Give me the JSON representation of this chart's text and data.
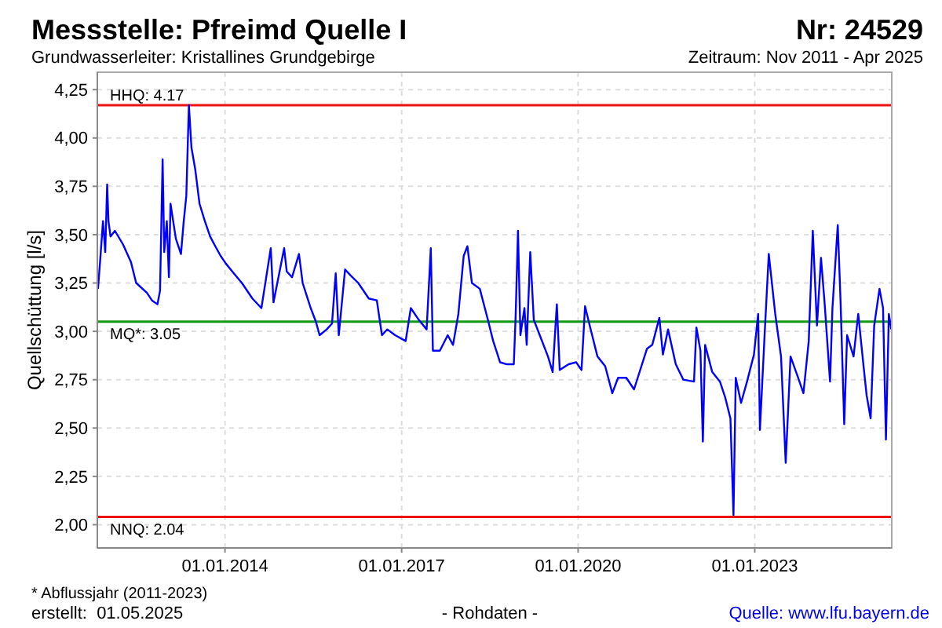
{
  "chart_data": {
    "type": "line",
    "title": "Messstelle: Pfreimd Quelle I",
    "subtitle": "Grundwasserleiter: Kristallines Grundgebirge",
    "ylabel": "Quellschüttung [l/s]",
    "annotations": [
      "Nr: 24529",
      "Zeitraum: Nov 2011 - Apr 2025",
      "* Abflussjahr (2011-2023)",
      "erstellt:  01.05.2025",
      "- Rohdaten -",
      "Quelle: www.lfu.bayern.de"
    ],
    "xlim": [
      "2011-11-01",
      "2025-04-30"
    ],
    "xticks": [
      {
        "value": "2014-01-01",
        "label": "01.01.2014"
      },
      {
        "value": "2017-01-01",
        "label": "01.01.2017"
      },
      {
        "value": "2020-01-01",
        "label": "01.01.2020"
      },
      {
        "value": "2023-01-01",
        "label": "01.01.2023"
      }
    ],
    "ylim": [
      1.88,
      4.34
    ],
    "yticks": [
      {
        "value": 2,
        "label": "2,00"
      },
      {
        "value": 2.25,
        "label": "2,25"
      },
      {
        "value": 2.5,
        "label": "2,50"
      },
      {
        "value": 2.75,
        "label": "2,75"
      },
      {
        "value": 3,
        "label": "3,00"
      },
      {
        "value": 3.25,
        "label": "3,25"
      },
      {
        "value": 3.5,
        "label": "3,50"
      },
      {
        "value": 3.75,
        "label": "3,75"
      },
      {
        "value": 4,
        "label": "4,00"
      },
      {
        "value": 4.25,
        "label": "4,25"
      }
    ],
    "grid": true,
    "line_style": "solid",
    "marker": "none",
    "ref_lines": [
      {
        "axis": "y",
        "value": 4.17,
        "label": "HHQ: 4.17",
        "color": "#ee1111"
      },
      {
        "axis": "y",
        "value": 3.05,
        "label": "MQ*: 3.05",
        "color": "#119911"
      },
      {
        "axis": "y",
        "value": 2.04,
        "label": "NNQ: 2.04",
        "color": "#ee1111"
      }
    ],
    "series": [
      {
        "color": "#0000ff",
        "x": [
          "2011-11-05",
          "2011-11-18",
          "2011-12-06",
          "2011-12-20",
          "2012-01-01",
          "2012-01-09",
          "2012-01-22",
          "2012-02-18",
          "2012-04-08",
          "2012-05-27",
          "2012-06-29",
          "2012-09-03",
          "2012-10-05",
          "2012-11-08",
          "2012-11-24",
          "2012-12-10",
          "2012-12-20",
          "2013-01-05",
          "2013-01-18",
          "2013-01-28",
          "2013-03-02",
          "2013-04-03",
          "2013-04-19",
          "2013-05-06",
          "2013-05-22",
          "2013-06-07",
          "2013-06-30",
          "2013-07-27",
          "2013-08-29",
          "2013-10-01",
          "2013-11-02",
          "2013-12-05",
          "2014-01-07",
          "2014-02-25",
          "2014-04-16",
          "2014-06-20",
          "2014-08-15",
          "2014-10-12",
          "2014-10-29",
          "2015-01-03",
          "2015-01-19",
          "2015-02-21",
          "2015-04-05",
          "2015-04-28",
          "2015-06-17",
          "2015-07-19",
          "2015-08-11",
          "2015-09-24",
          "2015-10-27",
          "2015-11-19",
          "2015-12-08",
          "2016-01-16",
          "2016-02-18",
          "2016-04-07",
          "2016-06-11",
          "2016-07-31",
          "2016-09-01",
          "2016-10-04",
          "2016-11-22",
          "2017-01-26",
          "2017-02-27",
          "2017-04-17",
          "2017-06-05",
          "2017-07-01",
          "2017-07-14",
          "2017-08-26",
          "2017-10-14",
          "2017-11-16",
          "2017-12-19",
          "2018-01-21",
          "2018-02-13",
          "2018-03-13",
          "2018-05-01",
          "2018-06-20",
          "2018-07-23",
          "2018-09-04",
          "2018-10-12",
          "2018-11-28",
          "2018-12-09",
          "2018-12-24",
          "2019-01-08",
          "2019-02-02",
          "2019-02-16",
          "2019-03-10",
          "2019-04-01",
          "2019-05-08",
          "2019-06-28",
          "2019-07-27",
          "2019-08-22",
          "2019-09-09",
          "2019-11-03",
          "2019-12-20",
          "2020-01-22",
          "2020-02-13",
          "2020-03-13",
          "2020-04-30",
          "2020-06-17",
          "2020-07-31",
          "2020-09-05",
          "2020-10-26",
          "2020-12-13",
          "2021-03-03",
          "2021-04-05",
          "2021-05-19",
          "2021-06-10",
          "2021-07-12",
          "2021-08-29",
          "2021-10-15",
          "2021-12-20",
          "2022-01-04",
          "2022-01-29",
          "2022-02-13",
          "2022-02-27",
          "2022-04-12",
          "2022-05-30",
          "2022-07-01",
          "2022-08-03",
          "2022-08-22",
          "2022-09-05",
          "2022-10-08",
          "2022-11-14",
          "2022-12-27",
          "2023-01-22",
          "2023-02-02",
          "2023-03-03",
          "2023-03-29",
          "2023-05-08",
          "2023-06-13",
          "2023-07-12",
          "2023-08-11",
          "2023-09-27",
          "2023-10-30",
          "2023-12-02",
          "2023-12-27",
          "2024-01-22",
          "2024-02-16",
          "2024-03-10",
          "2024-04-12",
          "2024-04-27",
          "2024-05-30",
          "2024-06-17",
          "2024-07-09",
          "2024-07-27",
          "2024-09-05",
          "2024-10-04",
          "2024-11-06",
          "2024-11-25",
          "2024-12-20",
          "2025-01-11",
          "2025-02-13",
          "2025-03-07",
          "2025-03-25",
          "2025-04-12",
          "2025-04-27"
        ],
        "values": [
          3.22,
          3.36,
          3.57,
          3.41,
          3.76,
          3.57,
          3.49,
          3.52,
          3.45,
          3.36,
          3.25,
          3.2,
          3.16,
          3.14,
          3.21,
          3.89,
          3.41,
          3.57,
          3.28,
          3.66,
          3.48,
          3.4,
          3.56,
          3.7,
          4.17,
          3.95,
          3.84,
          3.66,
          3.57,
          3.49,
          3.44,
          3.39,
          3.35,
          3.3,
          3.25,
          3.17,
          3.12,
          3.43,
          3.15,
          3.43,
          3.31,
          3.28,
          3.4,
          3.25,
          3.12,
          3.05,
          2.98,
          3.01,
          3.04,
          3.3,
          2.98,
          3.32,
          3.29,
          3.25,
          3.17,
          3.16,
          2.98,
          3.01,
          2.98,
          2.95,
          3.12,
          3.06,
          3.01,
          3.43,
          2.9,
          2.9,
          2.98,
          2.93,
          3.09,
          3.39,
          3.44,
          3.25,
          3.22,
          3.06,
          2.95,
          2.84,
          2.83,
          2.83,
          3.07,
          3.52,
          2.98,
          3.12,
          2.93,
          3.41,
          3.06,
          2.98,
          2.87,
          2.79,
          3.14,
          2.8,
          2.83,
          2.84,
          2.8,
          3.13,
          3.03,
          2.87,
          2.82,
          2.68,
          2.76,
          2.76,
          2.7,
          2.91,
          2.93,
          3.07,
          2.88,
          3.01,
          2.83,
          2.75,
          2.74,
          3.02,
          2.9,
          2.43,
          2.93,
          2.79,
          2.74,
          2.66,
          2.55,
          2.05,
          2.76,
          2.63,
          2.74,
          2.88,
          3.09,
          2.49,
          2.98,
          3.4,
          3.09,
          2.87,
          2.32,
          2.87,
          2.76,
          2.68,
          2.95,
          3.52,
          3.03,
          3.38,
          3.14,
          2.74,
          3.12,
          3.55,
          3.14,
          2.52,
          2.98,
          2.87,
          3.09,
          2.82,
          2.67,
          2.55,
          3.03,
          3.22,
          3.12,
          2.44,
          3.09,
          3.01
        ]
      }
    ]
  }
}
